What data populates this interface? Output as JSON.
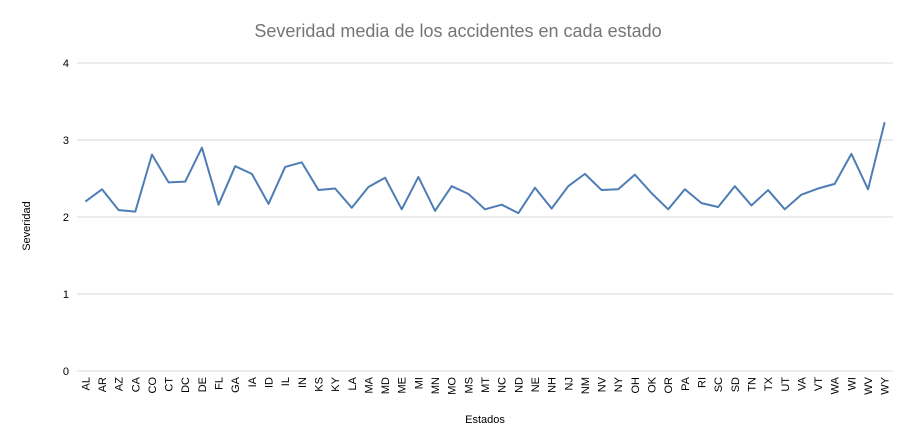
{
  "chart_data": {
    "type": "line",
    "title": "Severidad media de los accidentes en cada estado",
    "xlabel": "Estados",
    "ylabel": "Severidad",
    "ylim": [
      0,
      4
    ],
    "yticks": [
      0,
      1,
      2,
      3,
      4
    ],
    "grid": true,
    "legend": "none",
    "color": "#4e7db6",
    "categories": [
      "AL",
      "AR",
      "AZ",
      "CA",
      "CO",
      "CT",
      "DC",
      "DE",
      "FL",
      "GA",
      "IA",
      "ID",
      "IL",
      "IN",
      "KS",
      "KY",
      "LA",
      "MA",
      "MD",
      "ME",
      "MI",
      "MN",
      "MO",
      "MS",
      "MT",
      "NC",
      "ND",
      "NE",
      "NH",
      "NJ",
      "NM",
      "NV",
      "NY",
      "OH",
      "OK",
      "OR",
      "PA",
      "RI",
      "SC",
      "SD",
      "TN",
      "TX",
      "UT",
      "VA",
      "VT",
      "WA",
      "WI",
      "WV",
      "WY"
    ],
    "values": [
      2.2,
      2.36,
      2.09,
      2.07,
      2.81,
      2.45,
      2.46,
      2.9,
      2.16,
      2.66,
      2.56,
      2.17,
      2.65,
      2.71,
      2.35,
      2.37,
      2.12,
      2.39,
      2.51,
      2.1,
      2.52,
      2.08,
      2.4,
      2.3,
      2.1,
      2.16,
      2.05,
      2.38,
      2.11,
      2.4,
      2.56,
      2.35,
      2.36,
      2.55,
      2.31,
      2.1,
      2.36,
      2.18,
      2.13,
      2.4,
      2.15,
      2.35,
      2.1,
      2.29,
      2.37,
      2.43,
      2.82,
      2.36,
      3.23
    ]
  }
}
